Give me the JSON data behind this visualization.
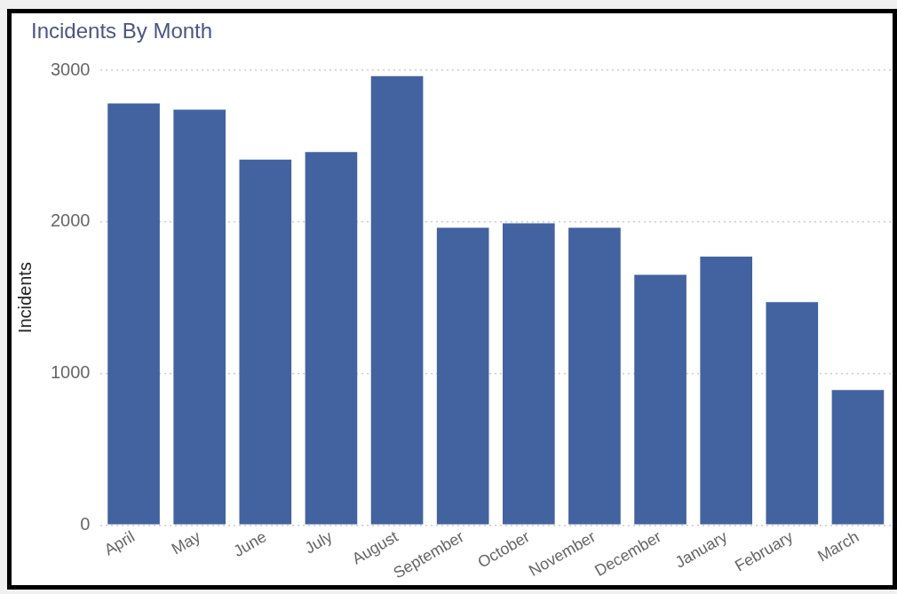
{
  "chart_data": {
    "type": "bar",
    "title": "Incidents By Month",
    "ylabel": "Incidents",
    "categories": [
      "April",
      "May",
      "June",
      "July",
      "August",
      "September",
      "October",
      "November",
      "December",
      "January",
      "February",
      "March"
    ],
    "values": [
      2780,
      2740,
      2410,
      2460,
      2960,
      1960,
      1990,
      1960,
      1650,
      1770,
      1470,
      890
    ],
    "color": "#4263a0",
    "ylim": [
      0,
      3000
    ],
    "yticks": [
      0,
      1000,
      2000,
      3000
    ],
    "grid": "y",
    "legend": false
  }
}
